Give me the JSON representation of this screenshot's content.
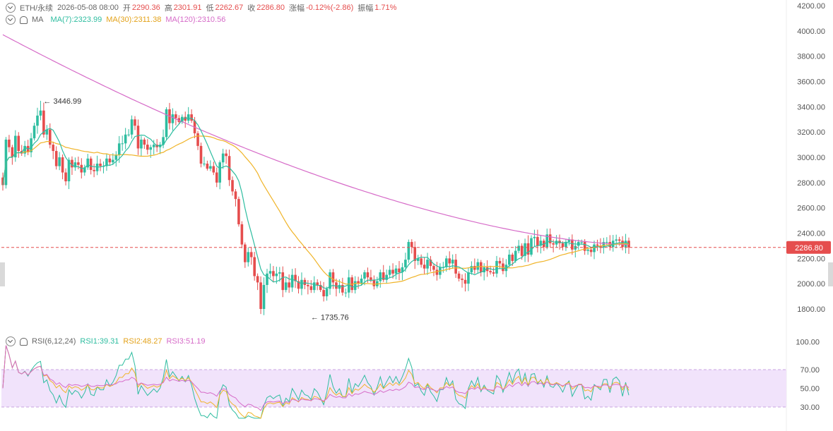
{
  "header": {
    "symbol": "ETH/永续",
    "datetime": "2026-05-08 08:00",
    "open_label": "开",
    "open": "2290.36",
    "high_label": "高",
    "high": "2301.91",
    "low_label": "低",
    "low": "2262.67",
    "close_label": "收",
    "close": "2286.80",
    "change_label": "涨幅",
    "change": "-0.12%(-2.86)",
    "amplitude_label": "振幅",
    "amplitude": "1.71%"
  },
  "ma_legend": {
    "name": "MA",
    "ma7": "MA(7):2323.99",
    "ma30": "MA(30):2311.38",
    "ma120": "MA(120):2310.56"
  },
  "rsi_legend": {
    "name": "RSI(6,12,24)",
    "rsi1": "RSI1:39.31",
    "rsi2": "RSI2:48.27",
    "rsi3": "RSI3:51.19"
  },
  "colors": {
    "up": "#2ebda0",
    "down": "#e54d4d",
    "ma7": "#2ebda0",
    "ma30": "#f0b429",
    "ma120": "#d66bc8",
    "rsi_band": "#f1e3fb"
  },
  "chart_data": [
    {
      "type": "candlestick",
      "y_axis_ticks": [
        "4200.00",
        "4000.00",
        "3800.00",
        "3600.00",
        "3400.00",
        "3200.00",
        "3000.00",
        "2800.00",
        "2600.00",
        "2400.00",
        "2200.00",
        "2000.00",
        "1800.00"
      ],
      "ylim": [
        1680,
        4220
      ],
      "current_price": "2286.80",
      "annotations": [
        {
          "text": "← 3446.99",
          "candle": 12,
          "value": 3446.99
        },
        {
          "text": "← 1735.76",
          "candle": 97,
          "value": 1735.76
        }
      ],
      "closes": [
        2780,
        3140,
        3080,
        3000,
        3170,
        3050,
        3030,
        3090,
        3040,
        3150,
        3250,
        3330,
        3370,
        3180,
        3220,
        3100,
        3050,
        2930,
        3000,
        2880,
        2810,
        2980,
        2920,
        2960,
        2940,
        2880,
        2920,
        2990,
        2900,
        2890,
        2950,
        2930,
        2930,
        2990,
        2960,
        2980,
        3020,
        3110,
        3110,
        3180,
        3180,
        3300,
        3250,
        3070,
        3140,
        3100,
        3060,
        3080,
        3100,
        3080,
        3100,
        3160,
        3380,
        3270,
        3340,
        3310,
        3280,
        3320,
        3290,
        3340,
        3290,
        3190,
        3090,
        2950,
        2950,
        2910,
        2930,
        2880,
        2800,
        2960,
        3030,
        3010,
        2820,
        2730,
        2670,
        2470,
        2310,
        2170,
        2250,
        2210,
        2060,
        2010,
        1800,
        1990,
        2080,
        2100,
        2060,
        2080,
        2090,
        1950,
        2010,
        1970,
        2070,
        2020,
        1960,
        2030,
        1990,
        1980,
        1950,
        2010,
        1990,
        1950,
        1900,
        1960,
        2090,
        2010,
        1960,
        1990,
        1930,
        1930,
        2050,
        1950,
        2020,
        2000,
        2040,
        2090,
        2050,
        2030,
        1980,
        2020,
        2090,
        2030,
        2070,
        2110,
        2080,
        2120,
        2090,
        2130,
        2190,
        2330,
        2290,
        2180,
        2200,
        2150,
        2120,
        2190,
        2140,
        2110,
        2070,
        2130,
        2130,
        2200,
        2160,
        2190,
        2080,
        2040,
        2030,
        2000,
        2090,
        2140,
        2110,
        2170,
        2090,
        2130,
        2100,
        2090,
        2080,
        2180,
        2160,
        2100,
        2150,
        2230,
        2180,
        2260,
        2300,
        2220,
        2320,
        2230,
        2360,
        2370,
        2300,
        2340,
        2290,
        2390,
        2320,
        2310,
        2340,
        2320,
        2290,
        2330,
        2350,
        2270,
        2300,
        2330,
        2330,
        2260,
        2270,
        2250,
        2310,
        2300,
        2290,
        2330,
        2330,
        2290,
        2340,
        2350,
        2340,
        2290,
        2340,
        2287
      ],
      "ma7_last": 2323.99,
      "ma30_last": 2311.38,
      "ma120_last": 2310.56
    },
    {
      "type": "line",
      "title": "RSI(6,12,24)",
      "y_axis_ticks": [
        "100.00",
        "70.00",
        "50.00",
        "30.00"
      ],
      "ylim": [
        28,
        100
      ],
      "band": [
        30,
        70
      ],
      "series": [
        {
          "name": "RSI1",
          "last": 39.31
        },
        {
          "name": "RSI2",
          "last": 48.27
        },
        {
          "name": "RSI3",
          "last": 51.19
        }
      ]
    }
  ]
}
